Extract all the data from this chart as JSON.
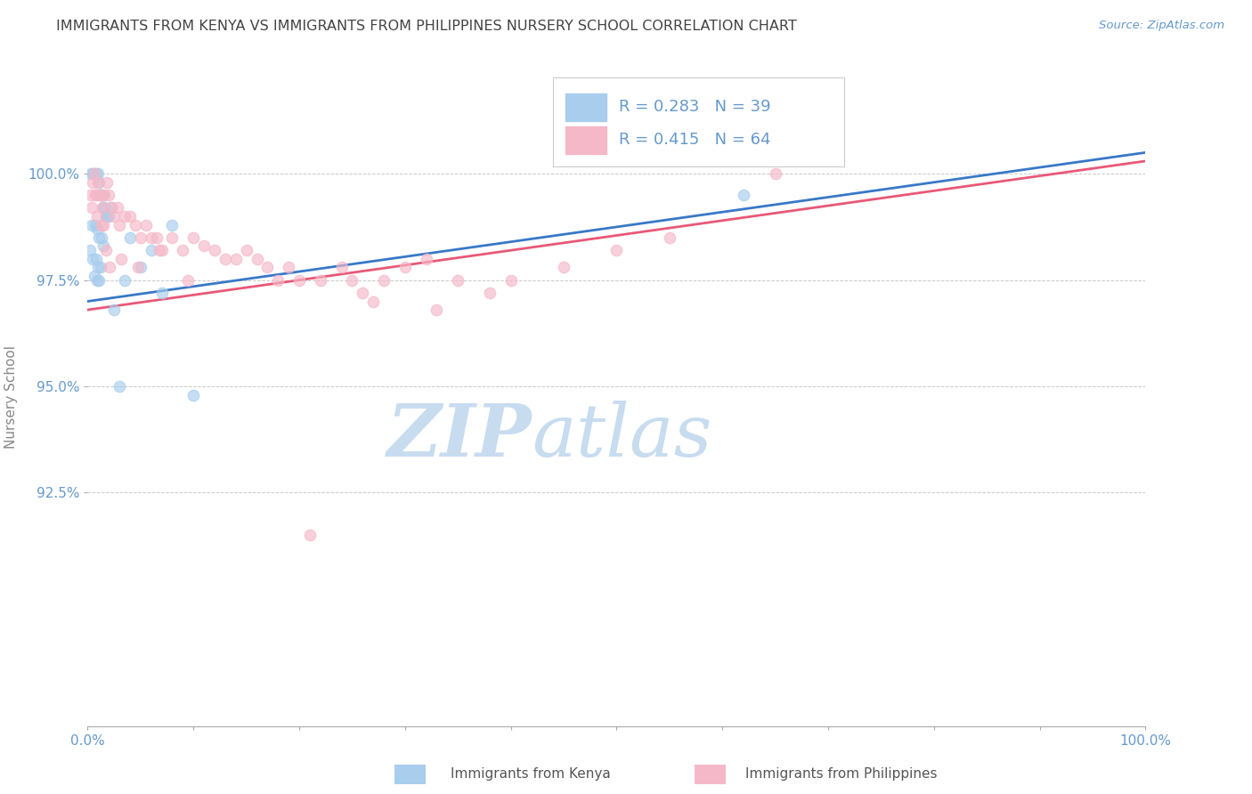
{
  "title": "IMMIGRANTS FROM KENYA VS IMMIGRANTS FROM PHILIPPINES NURSERY SCHOOL CORRELATION CHART",
  "source_text": "Source: ZipAtlas.com",
  "ylabel": "Nursery School",
  "xlim": [
    0.0,
    100.0
  ],
  "ylim": [
    87.0,
    102.5
  ],
  "yticks": [
    92.5,
    95.0,
    97.5,
    100.0
  ],
  "ytick_labels": [
    "92.5%",
    "95.0%",
    "97.5%",
    "100.0%"
  ],
  "xtick_positions": [
    0,
    10,
    20,
    30,
    40,
    50,
    60,
    70,
    80,
    90,
    100
  ],
  "xtick_labels_show": [
    "0.0%",
    "",
    "",
    "",
    "",
    "",
    "",
    "",
    "",
    "",
    "100.0%"
  ],
  "kenya_color": "#A8CDED",
  "philippines_color": "#F5B8C8",
  "kenya_R": 0.283,
  "kenya_N": 39,
  "philippines_R": 0.415,
  "philippines_N": 64,
  "kenya_line_color": "#3878C8",
  "philippines_line_color": "#E85878",
  "watermark_zip": "ZIP",
  "watermark_atlas": "atlas",
  "watermark_color": "#C8DCF0",
  "legend_label_kenya": "Immigrants from Kenya",
  "legend_label_philippines": "Immigrants from Philippines",
  "background_color": "#FFFFFF",
  "grid_color": "#BBBBBB",
  "title_color": "#444444",
  "axis_label_color": "#888888",
  "tick_color": "#6699CC",
  "kenya_points_x": [
    0.3,
    0.5,
    0.6,
    0.8,
    1.0,
    1.1,
    1.2,
    1.3,
    1.4,
    1.5,
    1.6,
    1.7,
    1.8,
    2.0,
    2.2,
    0.4,
    0.7,
    0.9,
    1.1,
    1.3,
    1.5,
    0.2,
    0.5,
    0.8,
    1.0,
    1.2,
    0.6,
    0.9,
    1.1,
    4.0,
    6.0,
    8.0,
    3.5,
    5.0,
    7.0,
    2.5,
    3.0,
    62.0,
    10.0
  ],
  "kenya_points_y": [
    100.0,
    100.0,
    100.0,
    100.0,
    100.0,
    99.8,
    99.5,
    99.5,
    99.5,
    99.2,
    99.2,
    99.0,
    99.0,
    99.0,
    99.2,
    98.8,
    98.8,
    98.7,
    98.5,
    98.5,
    98.3,
    98.2,
    98.0,
    98.0,
    97.8,
    97.8,
    97.6,
    97.5,
    97.5,
    98.5,
    98.2,
    98.8,
    97.5,
    97.8,
    97.2,
    96.8,
    95.0,
    99.5,
    94.8
  ],
  "philippines_points_x": [
    0.3,
    0.5,
    0.6,
    0.8,
    1.0,
    1.1,
    1.2,
    1.4,
    1.6,
    1.8,
    2.0,
    2.2,
    2.5,
    2.8,
    3.0,
    3.5,
    4.0,
    4.5,
    5.0,
    5.5,
    6.0,
    6.5,
    7.0,
    8.0,
    9.0,
    10.0,
    11.0,
    12.0,
    13.0,
    14.0,
    15.0,
    16.0,
    17.0,
    18.0,
    19.0,
    20.0,
    22.0,
    24.0,
    25.0,
    26.0,
    28.0,
    30.0,
    32.0,
    35.0,
    38.0,
    40.0,
    45.0,
    50.0,
    55.0,
    0.4,
    0.7,
    0.9,
    1.3,
    1.5,
    1.7,
    2.1,
    3.2,
    4.8,
    6.8,
    9.5,
    21.0,
    27.0,
    33.0,
    65.0
  ],
  "philippines_points_y": [
    99.5,
    99.8,
    100.0,
    99.5,
    99.8,
    99.5,
    99.5,
    99.2,
    99.5,
    99.8,
    99.5,
    99.2,
    99.0,
    99.2,
    98.8,
    99.0,
    99.0,
    98.8,
    98.5,
    98.8,
    98.5,
    98.5,
    98.2,
    98.5,
    98.2,
    98.5,
    98.3,
    98.2,
    98.0,
    98.0,
    98.2,
    98.0,
    97.8,
    97.5,
    97.8,
    97.5,
    97.5,
    97.8,
    97.5,
    97.2,
    97.5,
    97.8,
    98.0,
    97.5,
    97.2,
    97.5,
    97.8,
    98.2,
    98.5,
    99.2,
    99.5,
    99.0,
    98.8,
    98.8,
    98.2,
    97.8,
    98.0,
    97.8,
    98.2,
    97.5,
    91.5,
    97.0,
    96.8,
    100.0
  ]
}
